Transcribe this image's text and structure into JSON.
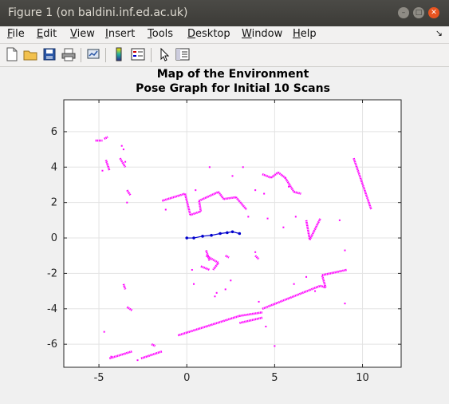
{
  "window": {
    "title": "Figure 1 (on baldini.inf.ed.ac.uk)",
    "minimize_glyph": "–",
    "maximize_glyph": "□",
    "close_glyph": "✕"
  },
  "menu": {
    "items": [
      {
        "label": "File",
        "accel": "F"
      },
      {
        "label": "Edit",
        "accel": "E"
      },
      {
        "label": "View",
        "accel": "V"
      },
      {
        "label": "Insert",
        "accel": "I"
      },
      {
        "label": "Tools",
        "accel": "T"
      },
      {
        "label": "Desktop",
        "accel": "D"
      },
      {
        "label": "Window",
        "accel": "W"
      },
      {
        "label": "Help",
        "accel": "H"
      }
    ],
    "overflow_glyph": "↘"
  },
  "toolbar": {
    "buttons": [
      "new-figure-icon",
      "open-file-icon",
      "save-icon",
      "print-icon",
      "link-plot-icon",
      "insert-colorbar-icon",
      "insert-legend-icon",
      "edit-plot-arrow-icon",
      "property-inspector-icon"
    ]
  },
  "chart_data": {
    "type": "scatter",
    "title": "Map of the Environment",
    "subtitle": "Pose Graph for Initial 10 Scans",
    "xlim": [
      -7,
      12.2
    ],
    "ylim": [
      -7.3,
      7.8
    ],
    "xticks": [
      -5,
      0,
      5,
      10
    ],
    "yticks": [
      -6,
      -4,
      -2,
      0,
      2,
      4,
      6
    ],
    "grid": true,
    "colors": {
      "map": "#ff00ff",
      "pose": "#0000cc"
    },
    "map_segments": [
      [
        [
          -1.4,
          2.1
        ],
        [
          -0.1,
          2.5
        ]
      ],
      [
        [
          -0.1,
          2.5
        ],
        [
          0.2,
          1.3
        ]
      ],
      [
        [
          0.2,
          1.3
        ],
        [
          0.8,
          1.5
        ]
      ],
      [
        [
          0.8,
          1.5
        ],
        [
          0.7,
          2.1
        ]
      ],
      [
        [
          0.7,
          2.1
        ],
        [
          1.8,
          2.6
        ]
      ],
      [
        [
          1.8,
          2.6
        ],
        [
          2.1,
          2.2
        ]
      ],
      [
        [
          2.1,
          2.2
        ],
        [
          2.8,
          2.3
        ]
      ],
      [
        [
          2.8,
          2.3
        ],
        [
          3.4,
          1.6
        ]
      ],
      [
        [
          4.3,
          3.6
        ],
        [
          4.8,
          3.4
        ]
      ],
      [
        [
          4.8,
          3.4
        ],
        [
          5.2,
          3.7
        ]
      ],
      [
        [
          5.2,
          3.7
        ],
        [
          5.6,
          3.4
        ]
      ],
      [
        [
          5.6,
          3.4
        ],
        [
          6.1,
          2.6
        ]
      ],
      [
        [
          6.1,
          2.6
        ],
        [
          6.5,
          2.5
        ]
      ],
      [
        [
          9.5,
          4.5
        ],
        [
          10.5,
          1.6
        ]
      ],
      [
        [
          6.8,
          1.0
        ],
        [
          7.0,
          -0.1
        ]
      ],
      [
        [
          7.0,
          -0.1
        ],
        [
          7.6,
          1.1
        ]
      ],
      [
        [
          4.3,
          -4.0
        ],
        [
          7.6,
          -2.7
        ]
      ],
      [
        [
          7.6,
          -2.7
        ],
        [
          7.9,
          -2.8
        ]
      ],
      [
        [
          7.9,
          -2.8
        ],
        [
          7.7,
          -2.1
        ]
      ],
      [
        [
          7.7,
          -2.1
        ],
        [
          9.1,
          -1.8
        ]
      ],
      [
        [
          -0.5,
          -5.5
        ],
        [
          3.0,
          -4.4
        ]
      ],
      [
        [
          3.0,
          -4.4
        ],
        [
          4.3,
          -4.2
        ]
      ],
      [
        [
          3.0,
          -4.8
        ],
        [
          4.3,
          -4.5
        ]
      ],
      [
        [
          -4.4,
          -6.8
        ],
        [
          -3.1,
          -6.4
        ]
      ],
      [
        [
          -2.6,
          -6.8
        ],
        [
          -1.4,
          -6.4
        ]
      ],
      [
        [
          -4.7,
          5.6
        ],
        [
          -4.5,
          5.7
        ]
      ],
      [
        [
          -5.2,
          5.5
        ],
        [
          -4.8,
          5.5
        ]
      ],
      [
        [
          -4.6,
          4.4
        ],
        [
          -4.4,
          3.8
        ]
      ],
      [
        [
          -3.8,
          4.5
        ],
        [
          -3.5,
          4.0
        ]
      ],
      [
        [
          -3.4,
          2.7
        ],
        [
          -3.2,
          2.4
        ]
      ],
      [
        [
          1.1,
          -0.7
        ],
        [
          1.3,
          -1.3
        ]
      ],
      [
        [
          1.1,
          -1.0
        ],
        [
          1.8,
          -1.4
        ]
      ],
      [
        [
          1.8,
          -1.4
        ],
        [
          1.5,
          -1.8
        ]
      ],
      [
        [
          0.8,
          -1.6
        ],
        [
          1.3,
          -1.8
        ]
      ],
      [
        [
          2.2,
          -1.0
        ],
        [
          2.4,
          -1.1
        ]
      ],
      [
        [
          3.9,
          -1.0
        ],
        [
          4.1,
          -1.2
        ]
      ],
      [
        [
          -3.4,
          -3.9
        ],
        [
          -3.1,
          -4.1
        ]
      ],
      [
        [
          -3.6,
          -2.6
        ],
        [
          -3.5,
          -2.9
        ]
      ],
      [
        [
          -2.0,
          -6.0
        ],
        [
          -1.8,
          -6.1
        ]
      ]
    ],
    "map_points": [
      [
        -3.7,
        5.2
      ],
      [
        -3.6,
        5.0
      ],
      [
        -4.7,
        -5.3
      ],
      [
        -3.4,
        2.0
      ],
      [
        -1.2,
        1.6
      ],
      [
        3.2,
        4.0
      ],
      [
        3.5,
        1.2
      ],
      [
        3.9,
        2.7
      ],
      [
        4.6,
        1.1
      ],
      [
        5.5,
        0.6
      ],
      [
        6.2,
        1.2
      ],
      [
        8.7,
        1.0
      ],
      [
        9.0,
        -0.7
      ],
      [
        3.9,
        -0.8
      ],
      [
        0.4,
        -2.6
      ],
      [
        0.3,
        -1.8
      ],
      [
        1.7,
        -3.1
      ],
      [
        2.5,
        -2.4
      ],
      [
        1.3,
        4.0
      ],
      [
        1.6,
        -3.3
      ],
      [
        2.2,
        -2.9
      ],
      [
        4.1,
        -3.6
      ],
      [
        9.0,
        -3.7
      ],
      [
        6.1,
        -2.6
      ],
      [
        5.0,
        -6.1
      ],
      [
        4.5,
        -5.0
      ],
      [
        -4.3,
        -6.7
      ],
      [
        -2.8,
        -6.9
      ],
      [
        0.5,
        2.7
      ],
      [
        4.4,
        2.5
      ],
      [
        5.8,
        2.9
      ],
      [
        2.6,
        3.5
      ],
      [
        -4.8,
        3.8
      ],
      [
        -3.5,
        4.3
      ],
      [
        6.8,
        -2.2
      ],
      [
        7.3,
        -3.0
      ]
    ],
    "pose_points": [
      [
        0,
        0
      ],
      [
        0.4,
        0.0
      ],
      [
        0.9,
        0.1
      ],
      [
        1.4,
        0.15
      ],
      [
        1.9,
        0.25
      ],
      [
        2.3,
        0.3
      ],
      [
        2.6,
        0.35
      ],
      [
        3.0,
        0.25
      ]
    ]
  }
}
